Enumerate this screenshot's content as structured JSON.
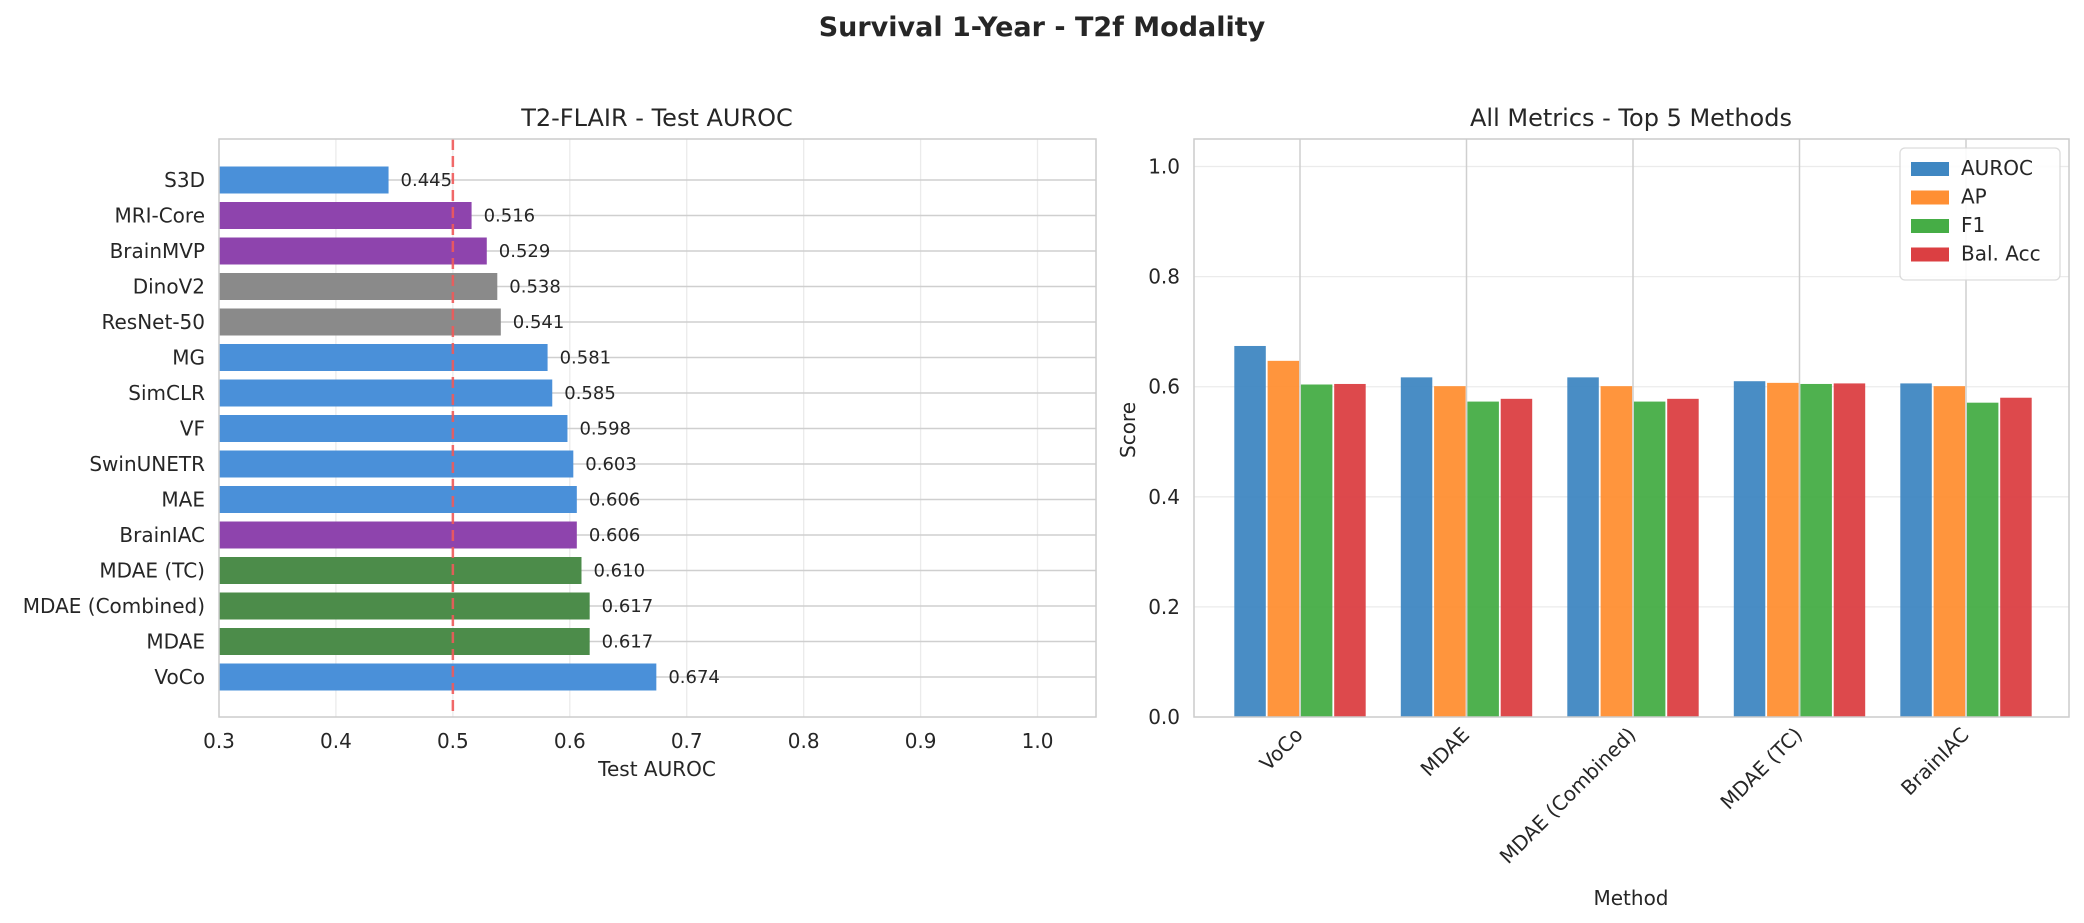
{
  "figure": {
    "title": "Survival 1-Year - T2f Modality"
  },
  "chart_data": [
    {
      "type": "bar",
      "orientation": "horizontal",
      "title": "T2-FLAIR - Test AUROC",
      "xlabel": "Test AUROC",
      "ylabel": "",
      "xlim": [
        0.3,
        1.05
      ],
      "xticks": [
        0.3,
        0.4,
        0.5,
        0.6,
        0.7,
        0.8,
        0.9,
        1.0
      ],
      "xtick_labels": [
        "0.3",
        "0.4",
        "0.5",
        "0.6",
        "0.7",
        "0.8",
        "0.9",
        "1.0"
      ],
      "grid": true,
      "reference_line": {
        "x": 0.5,
        "color": "#f05a5a",
        "style": "dashed"
      },
      "categories": [
        "S3D",
        "MRI-Core",
        "BrainMVP",
        "DinoV2",
        "ResNet-50",
        "MG",
        "SimCLR",
        "VF",
        "SwinUNETR",
        "MAE",
        "BrainIAC",
        "MDAE (TC)",
        "MDAE (Combined)",
        "MDAE",
        "VoCo"
      ],
      "values": [
        0.445,
        0.516,
        0.529,
        0.538,
        0.541,
        0.581,
        0.585,
        0.598,
        0.603,
        0.606,
        0.606,
        0.61,
        0.617,
        0.617,
        0.674
      ],
      "value_labels": [
        "0.445",
        "0.516",
        "0.529",
        "0.538",
        "0.541",
        "0.581",
        "0.585",
        "0.598",
        "0.603",
        "0.606",
        "0.606",
        "0.610",
        "0.617",
        "0.617",
        "0.674"
      ],
      "colors": [
        "#4a90d9",
        "#8e44ad",
        "#8e44ad",
        "#8a8a8a",
        "#8a8a8a",
        "#4a90d9",
        "#4a90d9",
        "#4a90d9",
        "#4a90d9",
        "#4a90d9",
        "#8e44ad",
        "#4c8c4a",
        "#4c8c4a",
        "#4c8c4a",
        "#4a90d9"
      ]
    },
    {
      "type": "bar",
      "orientation": "vertical",
      "title": "All Metrics - Top 5 Methods",
      "xlabel": "Method",
      "ylabel": "Score",
      "ylim": [
        0,
        1.05
      ],
      "yticks": [
        0.0,
        0.2,
        0.4,
        0.6,
        0.8,
        1.0
      ],
      "ytick_labels": [
        "0.0",
        "0.2",
        "0.4",
        "0.6",
        "0.8",
        "1.0"
      ],
      "grid": true,
      "legend": "top-right",
      "categories": [
        "VoCo",
        "MDAE",
        "MDAE (Combined)",
        "MDAE (TC)",
        "BrainIAC"
      ],
      "series": [
        {
          "name": "AUROC",
          "color": "#3f87c2",
          "values": [
            0.674,
            0.617,
            0.617,
            0.61,
            0.606
          ]
        },
        {
          "name": "AP",
          "color": "#ff8f33",
          "values": [
            0.647,
            0.601,
            0.601,
            0.607,
            0.601
          ]
        },
        {
          "name": "F1",
          "color": "#46ad46",
          "values": [
            0.604,
            0.573,
            0.573,
            0.605,
            0.571
          ]
        },
        {
          "name": "Bal. Acc",
          "color": "#db3f42",
          "values": [
            0.605,
            0.578,
            0.578,
            0.606,
            0.58
          ]
        }
      ]
    }
  ]
}
